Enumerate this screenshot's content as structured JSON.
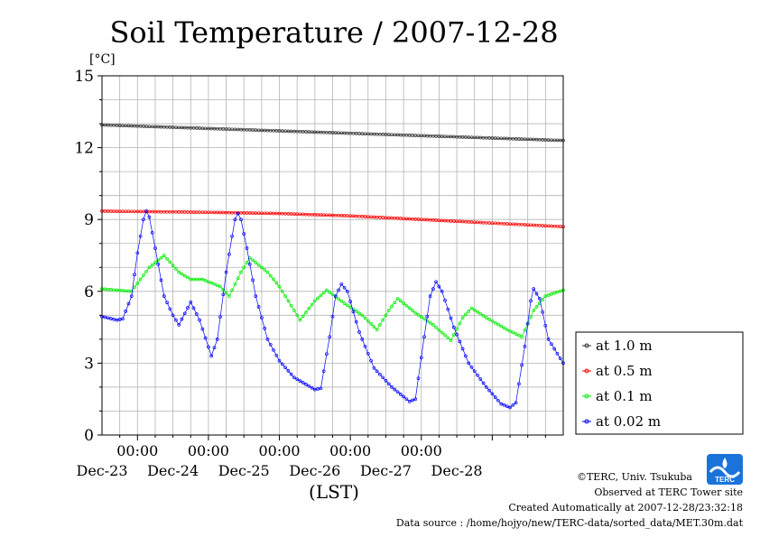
{
  "chart_data": {
    "type": "line",
    "title": "Soil Temperature / 2007-12-28",
    "ylabel": "[°C]",
    "xlabel": "(LST)",
    "ylim": [
      0,
      15
    ],
    "y_ticks": [
      "0",
      "3",
      "6",
      "9",
      "12",
      "15"
    ],
    "x_start": "2007-12-22 12:00",
    "x_end": "2007-12-28 24:00",
    "x_tick_labels": [
      "00:00",
      "00:00",
      "00:00",
      "00:00",
      "00:00"
    ],
    "date_labels": [
      "Dec-23",
      "Dec-24",
      "Dec-25",
      "Dec-26",
      "Dec-27",
      "Dec-28"
    ],
    "grid": true,
    "legend_position": "right",
    "series": [
      {
        "name": "at 1.0 m",
        "color": "#333333",
        "points": [
          [
            "2007-12-22 12:00",
            12.95
          ],
          [
            "2007-12-24 00:00",
            12.8
          ],
          [
            "2007-12-25 00:00",
            12.7
          ],
          [
            "2007-12-26 00:00",
            12.6
          ],
          [
            "2007-12-27 00:00",
            12.5
          ],
          [
            "2007-12-28 00:00",
            12.4
          ],
          [
            "2007-12-28 24:00",
            12.3
          ]
        ]
      },
      {
        "name": "at 0.5 m",
        "color": "#ff0000",
        "points": [
          [
            "2007-12-22 12:00",
            9.35
          ],
          [
            "2007-12-24 00:00",
            9.3
          ],
          [
            "2007-12-25 00:00",
            9.25
          ],
          [
            "2007-12-26 00:00",
            9.15
          ],
          [
            "2007-12-27 00:00",
            9.0
          ],
          [
            "2007-12-28 00:00",
            8.85
          ],
          [
            "2007-12-28 24:00",
            8.7
          ]
        ]
      },
      {
        "name": "at 0.1 m",
        "color": "#00ee00",
        "points": [
          [
            "2007-12-22 12:00",
            6.1
          ],
          [
            "2007-12-22 22:00",
            6.0
          ],
          [
            "2007-12-23 04:00",
            7.0
          ],
          [
            "2007-12-23 09:00",
            7.5
          ],
          [
            "2007-12-23 14:00",
            6.8
          ],
          [
            "2007-12-23 18:00",
            6.5
          ],
          [
            "2007-12-23 22:00",
            6.5
          ],
          [
            "2007-12-24 04:00",
            6.2
          ],
          [
            "2007-12-24 07:00",
            5.8
          ],
          [
            "2007-12-24 11:00",
            6.8
          ],
          [
            "2007-12-24 14:00",
            7.4
          ],
          [
            "2007-12-24 20:00",
            6.8
          ],
          [
            "2007-12-25 00:00",
            6.2
          ],
          [
            "2007-12-25 07:00",
            4.8
          ],
          [
            "2007-12-25 12:00",
            5.6
          ],
          [
            "2007-12-25 16:00",
            6.05
          ],
          [
            "2007-12-25 22:00",
            5.5
          ],
          [
            "2007-12-26 04:00",
            5.0
          ],
          [
            "2007-12-26 09:00",
            4.4
          ],
          [
            "2007-12-26 13:00",
            5.2
          ],
          [
            "2007-12-26 16:00",
            5.7
          ],
          [
            "2007-12-26 22:00",
            5.1
          ],
          [
            "2007-12-27 04:00",
            4.6
          ],
          [
            "2007-12-27 10:00",
            3.95
          ],
          [
            "2007-12-27 14:00",
            4.9
          ],
          [
            "2007-12-27 17:00",
            5.3
          ],
          [
            "2007-12-27 22:00",
            4.9
          ],
          [
            "2007-12-28 05:00",
            4.4
          ],
          [
            "2007-12-28 10:00",
            4.1
          ],
          [
            "2007-12-28 14:00",
            5.2
          ],
          [
            "2007-12-28 18:00",
            5.8
          ],
          [
            "2007-12-28 24:00",
            6.05
          ]
        ]
      },
      {
        "name": "at 0.02 m",
        "color": "#0000ff",
        "points": [
          [
            "2007-12-22 12:00",
            4.95
          ],
          [
            "2007-12-22 17:00",
            4.8
          ],
          [
            "2007-12-22 19:00",
            4.85
          ],
          [
            "2007-12-22 22:00",
            5.8
          ],
          [
            "2007-12-23 00:00",
            7.6
          ],
          [
            "2007-12-23 02:00",
            9.0
          ],
          [
            "2007-12-23 03:00",
            9.35
          ],
          [
            "2007-12-23 04:00",
            9.1
          ],
          [
            "2007-12-23 06:00",
            7.8
          ],
          [
            "2007-12-23 09:00",
            5.8
          ],
          [
            "2007-12-23 12:00",
            5.0
          ],
          [
            "2007-12-23 14:00",
            4.6
          ],
          [
            "2007-12-23 18:00",
            5.55
          ],
          [
            "2007-12-23 21:00",
            4.8
          ],
          [
            "2007-12-24 01:00",
            3.3
          ],
          [
            "2007-12-24 03:00",
            4.0
          ],
          [
            "2007-12-24 06:00",
            6.8
          ],
          [
            "2007-12-24 08:00",
            8.3
          ],
          [
            "2007-12-24 09:00",
            9.0
          ],
          [
            "2007-12-24 10:00",
            9.25
          ],
          [
            "2007-12-24 11:00",
            9.0
          ],
          [
            "2007-12-24 13:00",
            7.8
          ],
          [
            "2007-12-24 16:00",
            5.8
          ],
          [
            "2007-12-24 20:00",
            4.0
          ],
          [
            "2007-12-25 00:00",
            3.1
          ],
          [
            "2007-12-25 05:00",
            2.4
          ],
          [
            "2007-12-25 12:00",
            1.9
          ],
          [
            "2007-12-25 14:00",
            1.95
          ],
          [
            "2007-12-25 17:00",
            4.1
          ],
          [
            "2007-12-25 19:00",
            5.8
          ],
          [
            "2007-12-25 21:00",
            6.3
          ],
          [
            "2007-12-25 23:00",
            6.0
          ],
          [
            "2007-12-26 03:00",
            4.3
          ],
          [
            "2007-12-26 08:00",
            2.8
          ],
          [
            "2007-12-26 14:00",
            2.0
          ],
          [
            "2007-12-26 20:00",
            1.4
          ],
          [
            "2007-12-26 22:00",
            1.5
          ],
          [
            "2007-12-27 01:00",
            4.1
          ],
          [
            "2007-12-27 03:00",
            5.8
          ],
          [
            "2007-12-27 05:00",
            6.4
          ],
          [
            "2007-12-27 07:00",
            6.0
          ],
          [
            "2007-12-27 11:00",
            4.5
          ],
          [
            "2007-12-27 16:00",
            3.0
          ],
          [
            "2007-12-27 22:00",
            2.0
          ],
          [
            "2007-12-28 03:00",
            1.3
          ],
          [
            "2007-12-28 06:00",
            1.15
          ],
          [
            "2007-12-28 08:00",
            1.35
          ],
          [
            "2007-12-28 11:00",
            3.7
          ],
          [
            "2007-12-28 13:00",
            5.6
          ],
          [
            "2007-12-28 14:00",
            6.1
          ],
          [
            "2007-12-28 16:00",
            5.7
          ],
          [
            "2007-12-28 19:00",
            4.0
          ],
          [
            "2007-12-28 24:00",
            3.0
          ]
        ]
      }
    ]
  },
  "footer": {
    "copyright": "©TERC, Univ. Tsukuba",
    "observed": "Observed at TERC Tower site",
    "created": "Created Automatically at 2007-12-28/23:32:18",
    "source": "Data source : /home/hojyo/new/TERC-data/sorted_data/MET.30m.dat"
  },
  "logo": {
    "text": "TERC",
    "color": "#1a73d9"
  }
}
